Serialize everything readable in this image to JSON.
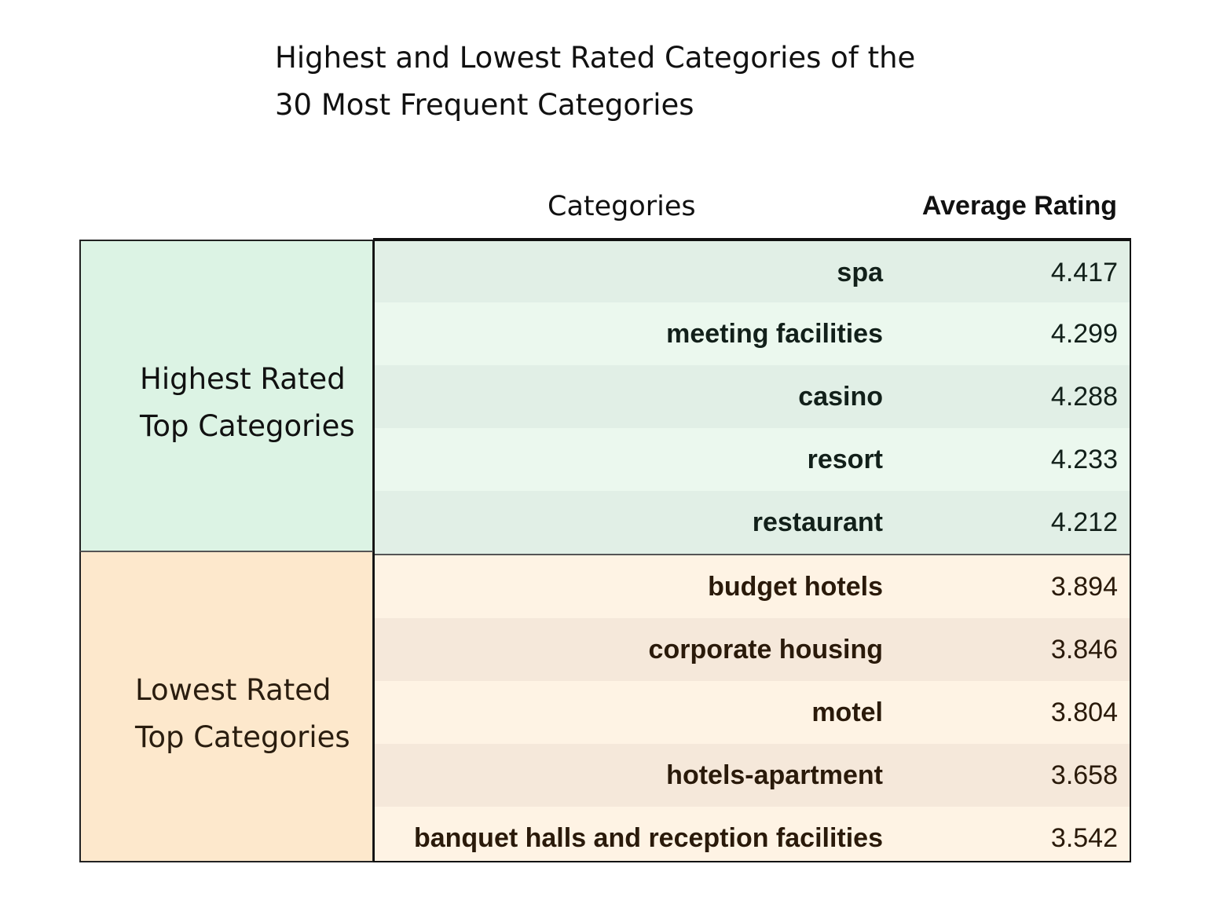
{
  "chart_data": {
    "type": "table",
    "title_lines": [
      "Highest and Lowest Rated Categories of the",
      "30 Most Frequent Categories"
    ],
    "columns": [
      "Categories",
      "Average Rating"
    ],
    "groups": [
      {
        "label_lines": [
          "Highest Rated",
          "Top Categories"
        ],
        "color": "#dcf3e4",
        "rows": [
          {
            "category": "spa",
            "rating": "4.417"
          },
          {
            "category": "meeting facilities",
            "rating": "4.299"
          },
          {
            "category": "casino",
            "rating": "4.288"
          },
          {
            "category": "resort",
            "rating": "4.233"
          },
          {
            "category": "restaurant",
            "rating": "4.212"
          }
        ]
      },
      {
        "label_lines": [
          "Lowest Rated",
          "Top Categories"
        ],
        "color": "#fde8cc",
        "rows": [
          {
            "category": "budget hotels",
            "rating": "3.894"
          },
          {
            "category": "corporate housing",
            "rating": "3.846"
          },
          {
            "category": "motel",
            "rating": "3.804"
          },
          {
            "category": "hotels-apartment",
            "rating": "3.658"
          },
          {
            "category": "banquet halls and reception facilities",
            "rating": "3.542"
          }
        ]
      }
    ]
  }
}
